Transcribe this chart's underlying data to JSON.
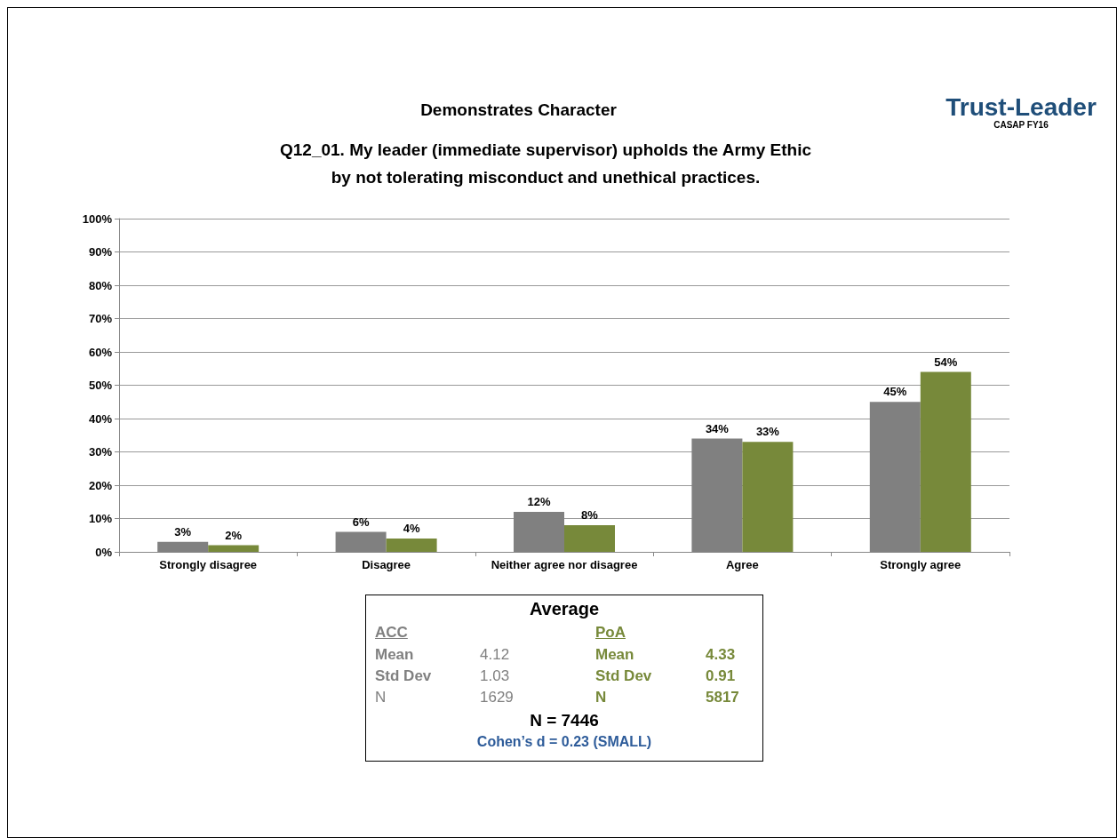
{
  "chart_data": {
    "type": "bar",
    "title": "Demonstrates Character",
    "subtitle": "Q12_01. My leader (immediate supervisor) upholds the Army Ethic by not tolerating misconduct and unethical practices.",
    "categories": [
      "Strongly disagree",
      "Disagree",
      "Neither agree nor disagree",
      "Agree",
      "Strongly agree"
    ],
    "series": [
      {
        "name": "ACC",
        "color": "#808080",
        "values": [
          3,
          6,
          12,
          34,
          45
        ],
        "value_labels": [
          "3%",
          "6%",
          "12%",
          "34%",
          "45%"
        ]
      },
      {
        "name": "PoA",
        "color": "#77893a",
        "values": [
          2,
          4,
          8,
          33,
          54
        ],
        "value_labels": [
          "2%",
          "4%",
          "8%",
          "33%",
          "54%"
        ]
      }
    ],
    "ylim": [
      0,
      100
    ],
    "yticks": [
      {
        "value": 0,
        "label": "0%"
      },
      {
        "value": 10,
        "label": "10%"
      },
      {
        "value": 20,
        "label": "20%"
      },
      {
        "value": 30,
        "label": "30%"
      },
      {
        "value": 40,
        "label": "40%"
      },
      {
        "value": 50,
        "label": "50%"
      },
      {
        "value": 60,
        "label": "60%"
      },
      {
        "value": 70,
        "label": "70%"
      },
      {
        "value": 80,
        "label": "80%"
      },
      {
        "value": 90,
        "label": "90%"
      },
      {
        "value": 100,
        "label": "100%"
      }
    ],
    "grid": "y",
    "annotations": [
      "Trust-Leader",
      "CASAP FY16",
      "Average",
      "Mean",
      "4.12",
      "Std Dev",
      "1.03",
      "N",
      "1629",
      "Mean",
      "4.33",
      "Std Dev",
      "0.91",
      "N",
      "5817",
      "N = 7446",
      "Cohen’s d = 0.23 (SMALL)"
    ]
  }
}
